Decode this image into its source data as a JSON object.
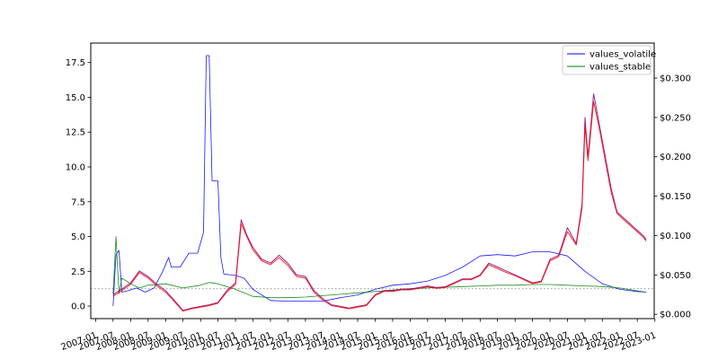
{
  "chart_data": {
    "type": "line",
    "title": "",
    "xlabel": "",
    "ylabel_left": "",
    "ylabel_right": "",
    "grid": false,
    "legend_position": "top-right",
    "x_ticks": [
      "2007-01",
      "2007-07",
      "2008-01",
      "2008-07",
      "2009-01",
      "2009-07",
      "2010-01",
      "2010-07",
      "2011-01",
      "2011-07",
      "2012-01",
      "2012-07",
      "2013-01",
      "2013-07",
      "2014-01",
      "2014-07",
      "2015-01",
      "2015-07",
      "2016-01",
      "2016-07",
      "2017-01",
      "2017-07",
      "2018-01",
      "2018-07",
      "2019-01",
      "2019-07",
      "2020-01",
      "2020-07",
      "2021-01",
      "2021-07",
      "2022-01",
      "2022-07",
      "2023-01"
    ],
    "x_range": [
      "2006-11-10",
      "2022-12-25"
    ],
    "y_left": {
      "ticks": [
        "0.0",
        "2.5",
        "5.0",
        "7.5",
        "10.0",
        "12.5",
        "15.0",
        "17.5"
      ],
      "range": [
        -0.9,
        18.9
      ]
    },
    "y_right": {
      "ticks": [
        "$0.000",
        "$0.050",
        "$0.100",
        "$0.150",
        "$0.200",
        "$0.250",
        "$0.300"
      ],
      "range": [
        -0.0055,
        0.3445
      ]
    },
    "reference_line": {
      "axis": "left",
      "value": 1.25,
      "color": "#999999",
      "style": "dotted"
    },
    "series": [
      {
        "name": "values_volatile",
        "axis": "left",
        "color": "#0000ff",
        "points": [
          [
            "2007-07-01",
            0.0
          ],
          [
            "2007-08-01",
            3.7
          ],
          [
            "2007-09-01",
            4.0
          ],
          [
            "2007-10-01",
            1.0
          ],
          [
            "2007-12-01",
            1.1
          ],
          [
            "2008-03-01",
            1.3
          ],
          [
            "2008-06-01",
            1.0
          ],
          [
            "2008-09-01",
            1.3
          ],
          [
            "2008-12-01",
            2.5
          ],
          [
            "2009-02-01",
            3.5
          ],
          [
            "2009-03-01",
            2.8
          ],
          [
            "2009-06-01",
            2.8
          ],
          [
            "2009-09-01",
            3.8
          ],
          [
            "2009-12-01",
            3.8
          ],
          [
            "2010-02-01",
            5.3
          ],
          [
            "2010-03-01",
            18.0
          ],
          [
            "2010-04-01",
            18.0
          ],
          [
            "2010-05-01",
            9.0
          ],
          [
            "2010-07-01",
            9.0
          ],
          [
            "2010-08-01",
            3.5
          ],
          [
            "2010-09-01",
            2.3
          ],
          [
            "2011-01-01",
            2.2
          ],
          [
            "2011-04-01",
            2.0
          ],
          [
            "2011-07-01",
            1.2
          ],
          [
            "2012-01-01",
            0.4
          ],
          [
            "2012-07-01",
            0.35
          ],
          [
            "2013-01-01",
            0.35
          ],
          [
            "2013-07-01",
            0.35
          ],
          [
            "2014-01-01",
            0.6
          ],
          [
            "2014-07-01",
            0.8
          ],
          [
            "2015-01-01",
            1.2
          ],
          [
            "2015-07-01",
            1.5
          ],
          [
            "2016-01-01",
            1.6
          ],
          [
            "2016-07-01",
            1.8
          ],
          [
            "2017-01-01",
            2.2
          ],
          [
            "2017-07-01",
            2.8
          ],
          [
            "2018-01-01",
            3.6
          ],
          [
            "2018-07-01",
            3.7
          ],
          [
            "2019-01-01",
            3.6
          ],
          [
            "2019-07-01",
            3.9
          ],
          [
            "2020-01-01",
            3.9
          ],
          [
            "2020-07-01",
            3.6
          ],
          [
            "2021-01-01",
            2.5
          ],
          [
            "2021-07-01",
            1.6
          ],
          [
            "2022-01-01",
            1.2
          ],
          [
            "2022-07-01",
            1.05
          ],
          [
            "2022-10-01",
            1.0
          ]
        ]
      },
      {
        "name": "values_stable",
        "axis": "left",
        "color": "#008000",
        "points": [
          [
            "2007-07-01",
            0.9
          ],
          [
            "2007-08-01",
            5.0
          ],
          [
            "2007-09-01",
            0.9
          ],
          [
            "2007-10-01",
            2.0
          ],
          [
            "2008-01-01",
            1.6
          ],
          [
            "2008-04-01",
            1.3
          ],
          [
            "2008-07-01",
            1.5
          ],
          [
            "2009-01-01",
            1.6
          ],
          [
            "2009-07-01",
            1.3
          ],
          [
            "2010-01-01",
            1.5
          ],
          [
            "2010-04-01",
            1.7
          ],
          [
            "2010-07-01",
            1.6
          ],
          [
            "2011-01-01",
            1.2
          ],
          [
            "2011-07-01",
            0.7
          ],
          [
            "2012-01-01",
            0.6
          ],
          [
            "2012-07-01",
            0.6
          ],
          [
            "2013-01-01",
            0.65
          ],
          [
            "2013-07-01",
            0.75
          ],
          [
            "2014-01-01",
            0.85
          ],
          [
            "2014-07-01",
            0.95
          ],
          [
            "2015-01-01",
            1.05
          ],
          [
            "2015-07-01",
            1.15
          ],
          [
            "2016-01-01",
            1.25
          ],
          [
            "2016-07-01",
            1.3
          ],
          [
            "2017-01-01",
            1.35
          ],
          [
            "2017-07-01",
            1.4
          ],
          [
            "2018-01-01",
            1.45
          ],
          [
            "2018-07-01",
            1.5
          ],
          [
            "2019-01-01",
            1.5
          ],
          [
            "2019-07-01",
            1.55
          ],
          [
            "2020-01-01",
            1.55
          ],
          [
            "2020-07-01",
            1.5
          ],
          [
            "2021-01-01",
            1.45
          ],
          [
            "2021-07-01",
            1.4
          ],
          [
            "2022-01-01",
            1.3
          ],
          [
            "2022-07-01",
            1.1
          ],
          [
            "2022-10-01",
            1.0
          ]
        ]
      },
      {
        "name": "",
        "axis": "right",
        "color": "#800080",
        "points": [
          [
            "2007-07-01",
            0.025
          ],
          [
            "2007-10-01",
            0.032
          ],
          [
            "2008-01-01",
            0.04
          ],
          [
            "2008-04-01",
            0.055
          ],
          [
            "2008-07-01",
            0.048
          ],
          [
            "2008-10-01",
            0.038
          ],
          [
            "2009-01-01",
            0.03
          ],
          [
            "2009-04-01",
            0.018
          ],
          [
            "2009-07-01",
            0.005
          ],
          [
            "2009-10-01",
            0.008
          ],
          [
            "2010-01-01",
            0.01
          ],
          [
            "2010-04-01",
            0.012
          ],
          [
            "2010-07-01",
            0.015
          ],
          [
            "2010-10-01",
            0.03
          ],
          [
            "2011-01-01",
            0.04
          ],
          [
            "2011-03-01",
            0.12
          ],
          [
            "2011-05-01",
            0.1
          ],
          [
            "2011-07-01",
            0.085
          ],
          [
            "2011-10-01",
            0.07
          ],
          [
            "2012-01-01",
            0.065
          ],
          [
            "2012-04-01",
            0.075
          ],
          [
            "2012-07-01",
            0.065
          ],
          [
            "2012-10-01",
            0.05
          ],
          [
            "2013-01-01",
            0.048
          ],
          [
            "2013-04-01",
            0.03
          ],
          [
            "2013-07-01",
            0.02
          ],
          [
            "2013-10-01",
            0.012
          ],
          [
            "2014-01-01",
            0.01
          ],
          [
            "2014-04-01",
            0.008
          ],
          [
            "2014-07-01",
            0.01
          ],
          [
            "2014-10-01",
            0.012
          ],
          [
            "2015-01-01",
            0.025
          ],
          [
            "2015-04-01",
            0.03
          ],
          [
            "2015-07-01",
            0.03
          ],
          [
            "2015-10-01",
            0.032
          ],
          [
            "2016-01-01",
            0.032
          ],
          [
            "2016-04-01",
            0.034
          ],
          [
            "2016-07-01",
            0.036
          ],
          [
            "2016-10-01",
            0.034
          ],
          [
            "2017-01-01",
            0.035
          ],
          [
            "2017-04-01",
            0.04
          ],
          [
            "2017-07-01",
            0.045
          ],
          [
            "2017-10-01",
            0.045
          ],
          [
            "2018-01-01",
            0.05
          ],
          [
            "2018-04-01",
            0.065
          ],
          [
            "2018-07-01",
            0.06
          ],
          [
            "2018-10-01",
            0.055
          ],
          [
            "2019-01-01",
            0.05
          ],
          [
            "2019-04-01",
            0.045
          ],
          [
            "2019-07-01",
            0.04
          ],
          [
            "2019-10-01",
            0.042
          ],
          [
            "2020-01-01",
            0.07
          ],
          [
            "2020-04-01",
            0.075
          ],
          [
            "2020-07-01",
            0.11
          ],
          [
            "2020-10-01",
            0.09
          ],
          [
            "2020-12-01",
            0.14
          ],
          [
            "2021-01-01",
            0.25
          ],
          [
            "2021-02-01",
            0.2
          ],
          [
            "2021-04-01",
            0.28
          ],
          [
            "2021-06-01",
            0.24
          ],
          [
            "2021-08-01",
            0.2
          ],
          [
            "2021-10-01",
            0.16
          ],
          [
            "2021-12-01",
            0.13
          ],
          [
            "2022-03-01",
            0.12
          ],
          [
            "2022-06-01",
            0.11
          ],
          [
            "2022-09-01",
            0.1
          ],
          [
            "2022-10-01",
            0.095
          ]
        ]
      },
      {
        "name": "",
        "axis": "right",
        "color": "#ff0000",
        "points": [
          [
            "2007-07-01",
            0.023
          ],
          [
            "2007-10-01",
            0.03
          ],
          [
            "2008-01-01",
            0.038
          ],
          [
            "2008-04-01",
            0.053
          ],
          [
            "2008-07-01",
            0.046
          ],
          [
            "2008-10-01",
            0.036
          ],
          [
            "2009-01-01",
            0.028
          ],
          [
            "2009-04-01",
            0.016
          ],
          [
            "2009-07-01",
            0.004
          ],
          [
            "2009-10-01",
            0.007
          ],
          [
            "2010-01-01",
            0.009
          ],
          [
            "2010-04-01",
            0.011
          ],
          [
            "2010-07-01",
            0.014
          ],
          [
            "2010-10-01",
            0.028
          ],
          [
            "2011-01-01",
            0.038
          ],
          [
            "2011-03-01",
            0.115
          ],
          [
            "2011-05-01",
            0.098
          ],
          [
            "2011-07-01",
            0.082
          ],
          [
            "2011-10-01",
            0.068
          ],
          [
            "2012-01-01",
            0.063
          ],
          [
            "2012-04-01",
            0.072
          ],
          [
            "2012-07-01",
            0.062
          ],
          [
            "2012-10-01",
            0.048
          ],
          [
            "2013-01-01",
            0.046
          ],
          [
            "2013-04-01",
            0.028
          ],
          [
            "2013-07-01",
            0.018
          ],
          [
            "2013-10-01",
            0.011
          ],
          [
            "2014-01-01",
            0.009
          ],
          [
            "2014-04-01",
            0.007
          ],
          [
            "2014-07-01",
            0.009
          ],
          [
            "2014-10-01",
            0.011
          ],
          [
            "2015-01-01",
            0.024
          ],
          [
            "2015-04-01",
            0.029
          ],
          [
            "2015-07-01",
            0.029
          ],
          [
            "2015-10-01",
            0.031
          ],
          [
            "2016-01-01",
            0.031
          ],
          [
            "2016-04-01",
            0.033
          ],
          [
            "2016-07-01",
            0.035
          ],
          [
            "2016-10-01",
            0.033
          ],
          [
            "2017-01-01",
            0.034
          ],
          [
            "2017-04-01",
            0.039
          ],
          [
            "2017-07-01",
            0.044
          ],
          [
            "2017-10-01",
            0.044
          ],
          [
            "2018-01-01",
            0.049
          ],
          [
            "2018-04-01",
            0.063
          ],
          [
            "2018-07-01",
            0.058
          ],
          [
            "2018-10-01",
            0.053
          ],
          [
            "2019-01-01",
            0.049
          ],
          [
            "2019-04-01",
            0.044
          ],
          [
            "2019-07-01",
            0.039
          ],
          [
            "2019-10-01",
            0.041
          ],
          [
            "2020-01-01",
            0.068
          ],
          [
            "2020-04-01",
            0.073
          ],
          [
            "2020-07-01",
            0.105
          ],
          [
            "2020-10-01",
            0.088
          ],
          [
            "2020-12-01",
            0.135
          ],
          [
            "2021-01-01",
            0.24
          ],
          [
            "2021-02-01",
            0.195
          ],
          [
            "2021-04-01",
            0.27
          ],
          [
            "2021-06-01",
            0.235
          ],
          [
            "2021-08-01",
            0.195
          ],
          [
            "2021-10-01",
            0.155
          ],
          [
            "2021-12-01",
            0.128
          ],
          [
            "2022-03-01",
            0.118
          ],
          [
            "2022-06-01",
            0.108
          ],
          [
            "2022-09-01",
            0.098
          ],
          [
            "2022-10-01",
            0.093
          ]
        ]
      }
    ]
  }
}
